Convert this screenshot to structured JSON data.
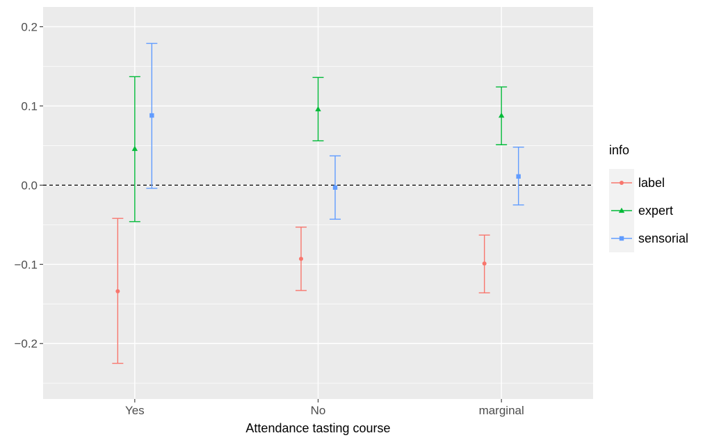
{
  "chart_data": {
    "type": "errorbar",
    "xlabel": "Attendance tasting course",
    "ylabel": "",
    "categories": [
      "Yes",
      "No",
      "marginal"
    ],
    "ylim": [
      -0.27,
      0.225
    ],
    "y_ticks": [
      -0.2,
      -0.1,
      0.0,
      0.1,
      0.2
    ],
    "y_tick_labels": [
      "−0.2",
      "−0.1",
      "0.0",
      "0.1",
      "0.2"
    ],
    "reference_line": 0.0,
    "grid": true,
    "legend": {
      "title": "info",
      "position": "right"
    },
    "series": [
      {
        "name": "label",
        "color": "#F8766D",
        "marker": "circle",
        "points": [
          {
            "category": "Yes",
            "y": -0.134,
            "lo": -0.225,
            "hi": -0.042
          },
          {
            "category": "No",
            "y": -0.093,
            "lo": -0.133,
            "hi": -0.053
          },
          {
            "category": "marginal",
            "y": -0.099,
            "lo": -0.136,
            "hi": -0.063
          }
        ]
      },
      {
        "name": "expert",
        "color": "#00BA38",
        "marker": "triangle",
        "points": [
          {
            "category": "Yes",
            "y": 0.046,
            "lo": -0.046,
            "hi": 0.137
          },
          {
            "category": "No",
            "y": 0.096,
            "lo": 0.056,
            "hi": 0.136
          },
          {
            "category": "marginal",
            "y": 0.088,
            "lo": 0.051,
            "hi": 0.124
          }
        ]
      },
      {
        "name": "sensorial",
        "color": "#619CFF",
        "marker": "square",
        "points": [
          {
            "category": "Yes",
            "y": 0.088,
            "lo": -0.004,
            "hi": 0.179
          },
          {
            "category": "No",
            "y": -0.003,
            "lo": -0.043,
            "hi": 0.037
          },
          {
            "category": "marginal",
            "y": 0.011,
            "lo": -0.025,
            "hi": 0.048
          }
        ]
      }
    ]
  }
}
